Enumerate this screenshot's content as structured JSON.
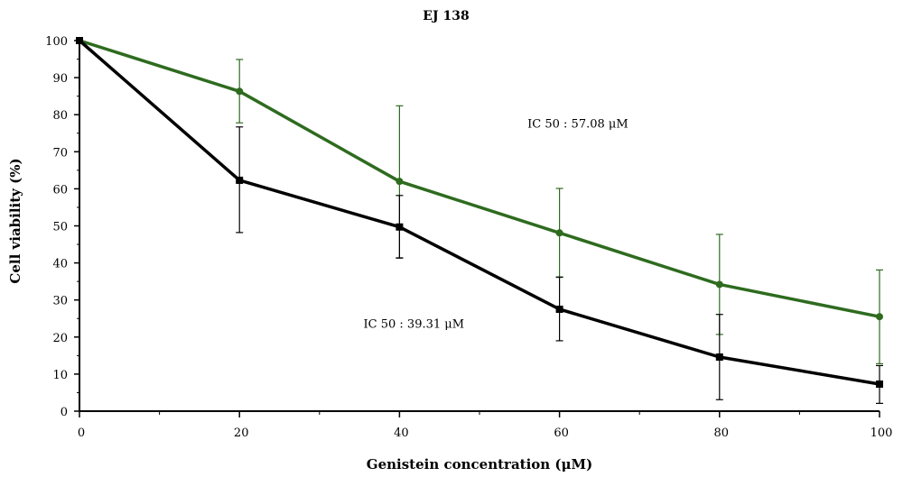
{
  "chart_data": {
    "type": "line",
    "title": "EJ 138",
    "xlabel": "Genistein concentration (μM)",
    "ylabel": "Cell viability (%)",
    "xlim": [
      0,
      100
    ],
    "ylim": [
      0,
      100
    ],
    "x_ticks": [
      "0",
      "20",
      "40",
      "60",
      "80",
      "100"
    ],
    "y_ticks": [
      "0",
      "10",
      "20",
      "30",
      "40",
      "50",
      "60",
      "70",
      "80",
      "90",
      "100"
    ],
    "grid": false,
    "series": [
      {
        "color": "#2e6b1f",
        "marker": "circle",
        "x": [
          0,
          20,
          40,
          60,
          80,
          100
        ],
        "y": [
          100,
          86.3,
          62,
          48.1,
          34.2,
          25.5
        ],
        "error_upper": [
          100,
          94.9,
          82.4,
          60.1,
          47.7,
          38.1
        ],
        "error_lower": [
          100,
          77.8,
          41.4,
          36.1,
          20.7,
          12.8
        ]
      },
      {
        "color": "#000000",
        "marker": "square",
        "x": [
          0,
          20,
          40,
          60,
          80,
          100
        ],
        "y": [
          100,
          62.3,
          49.7,
          27.5,
          14.6,
          7.3
        ],
        "error_upper": [
          100,
          76.7,
          58.2,
          36.2,
          26.1,
          12.3
        ],
        "error_lower": [
          100,
          48.2,
          41.3,
          19,
          3.1,
          2.1
        ]
      }
    ],
    "annotations": [
      {
        "text": "IC 50 : 57.08 μM",
        "x": 56,
        "y": 76.5
      },
      {
        "text": "IC 50 : 39.31 μM",
        "x": 35.5,
        "y": 22.5
      }
    ]
  }
}
